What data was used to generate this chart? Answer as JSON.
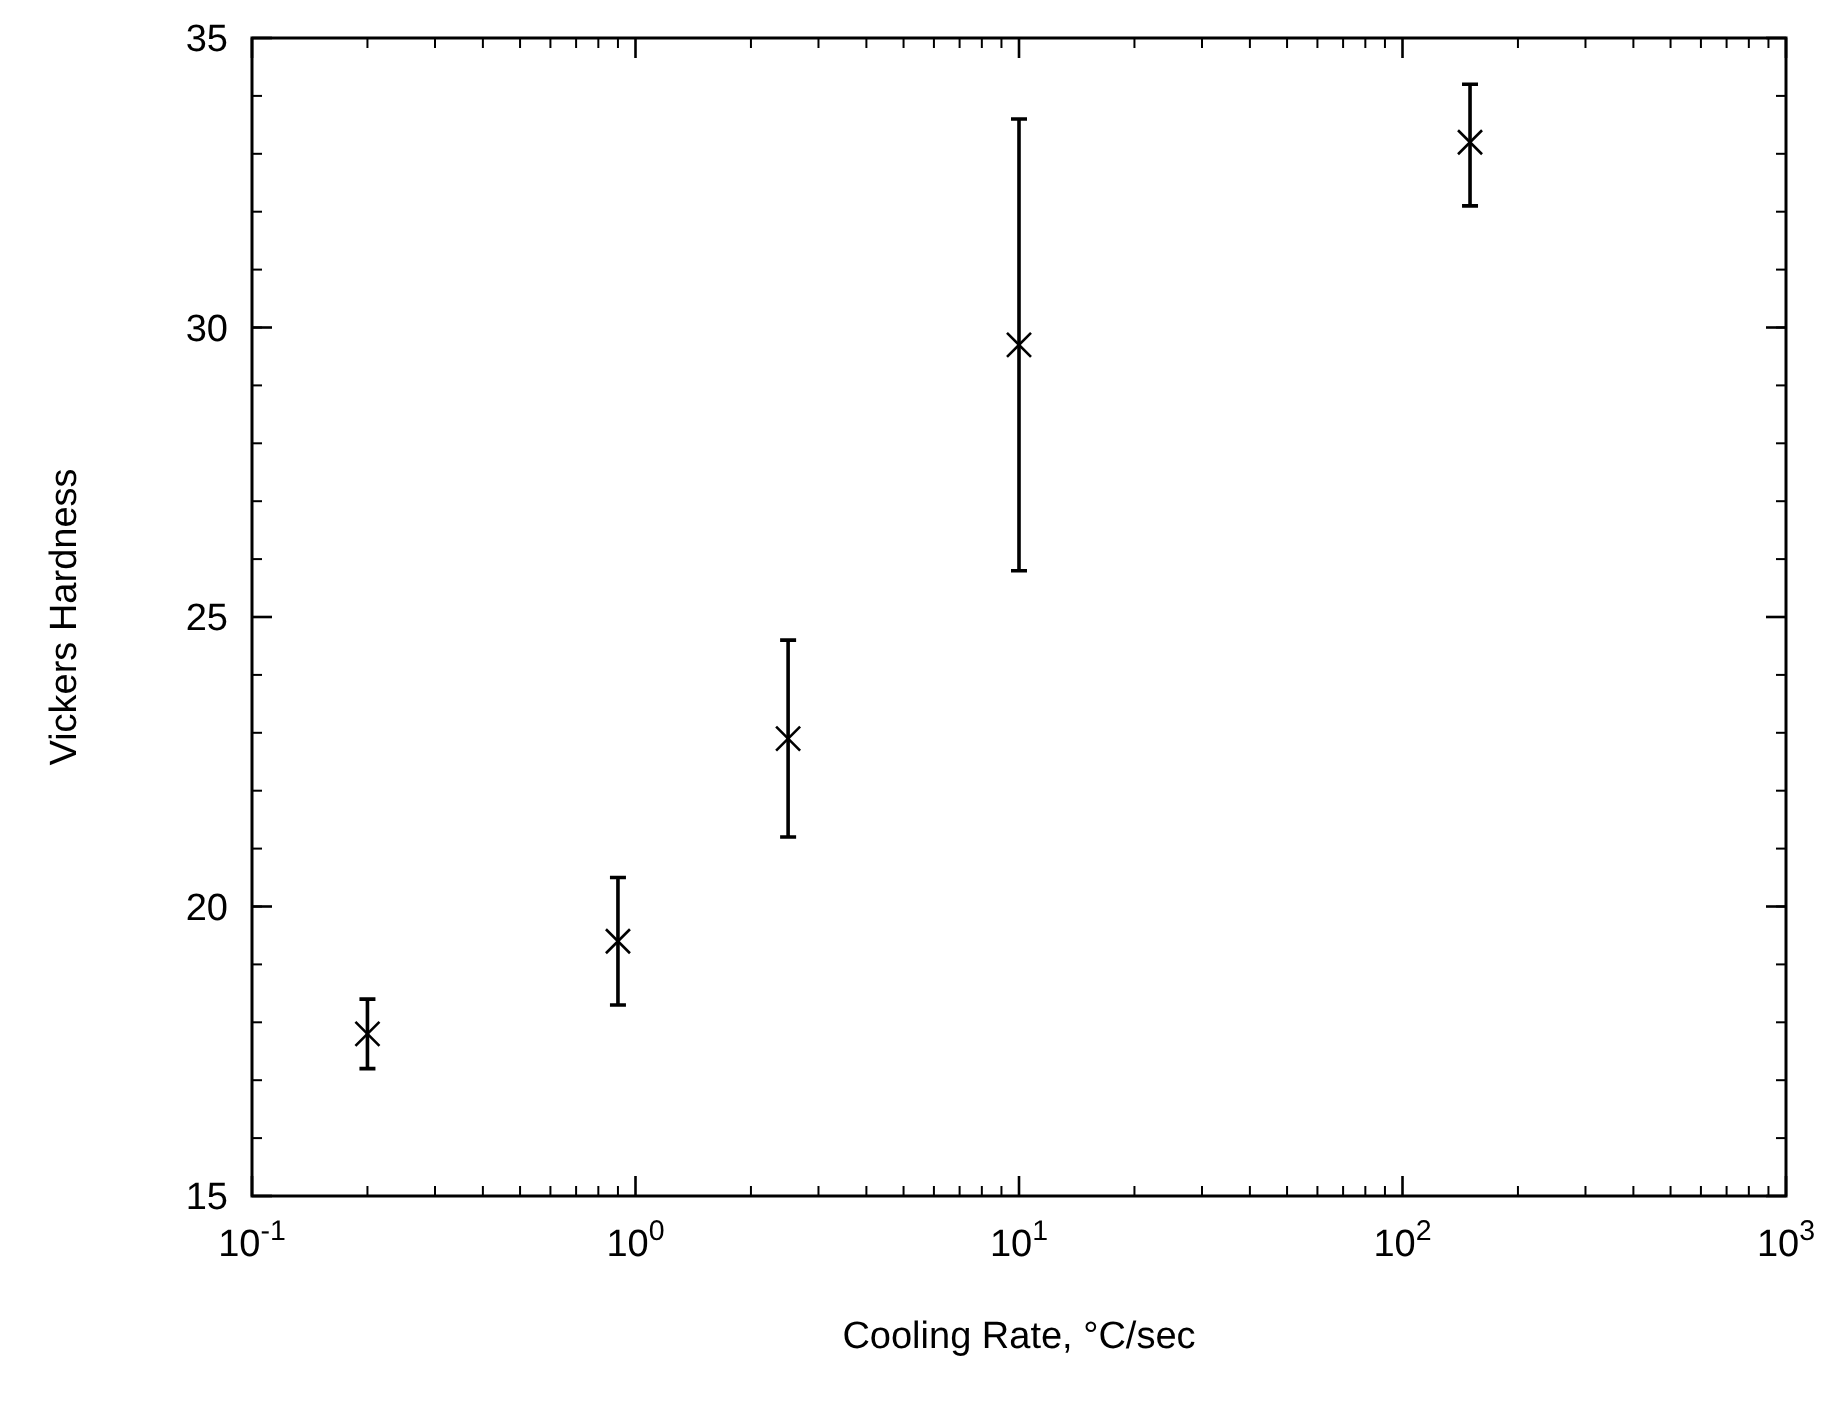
{
  "chart_data": {
    "type": "scatter",
    "xlabel": "Cooling Rate, °C/sec",
    "ylabel": "Vickers Hardness",
    "x": [
      0.2,
      0.9,
      2.5,
      10,
      150
    ],
    "values": [
      17.8,
      19.4,
      22.9,
      29.7,
      33.2
    ],
    "errors": [
      [
        17.2,
        18.4
      ],
      [
        18.3,
        20.5
      ],
      [
        21.2,
        24.6
      ],
      [
        25.8,
        33.6
      ],
      [
        32.1,
        34.2
      ]
    ],
    "color": "#000000",
    "marker": "cross",
    "log": "x",
    "grid": false,
    "xlim": [
      0.1,
      1000
    ],
    "xticks": [
      {
        "value": 0.1,
        "label": "10$^{-1}$"
      },
      {
        "value": 1,
        "label": "10$^{0}$"
      },
      {
        "value": 10,
        "label": "10$^{1}$"
      },
      {
        "value": 100,
        "label": "10$^{2}$"
      },
      {
        "value": 1000,
        "label": "10$^{3}$"
      }
    ],
    "ylim": [
      15,
      35
    ],
    "yticks": [
      15,
      20,
      25,
      30,
      35
    ]
  }
}
